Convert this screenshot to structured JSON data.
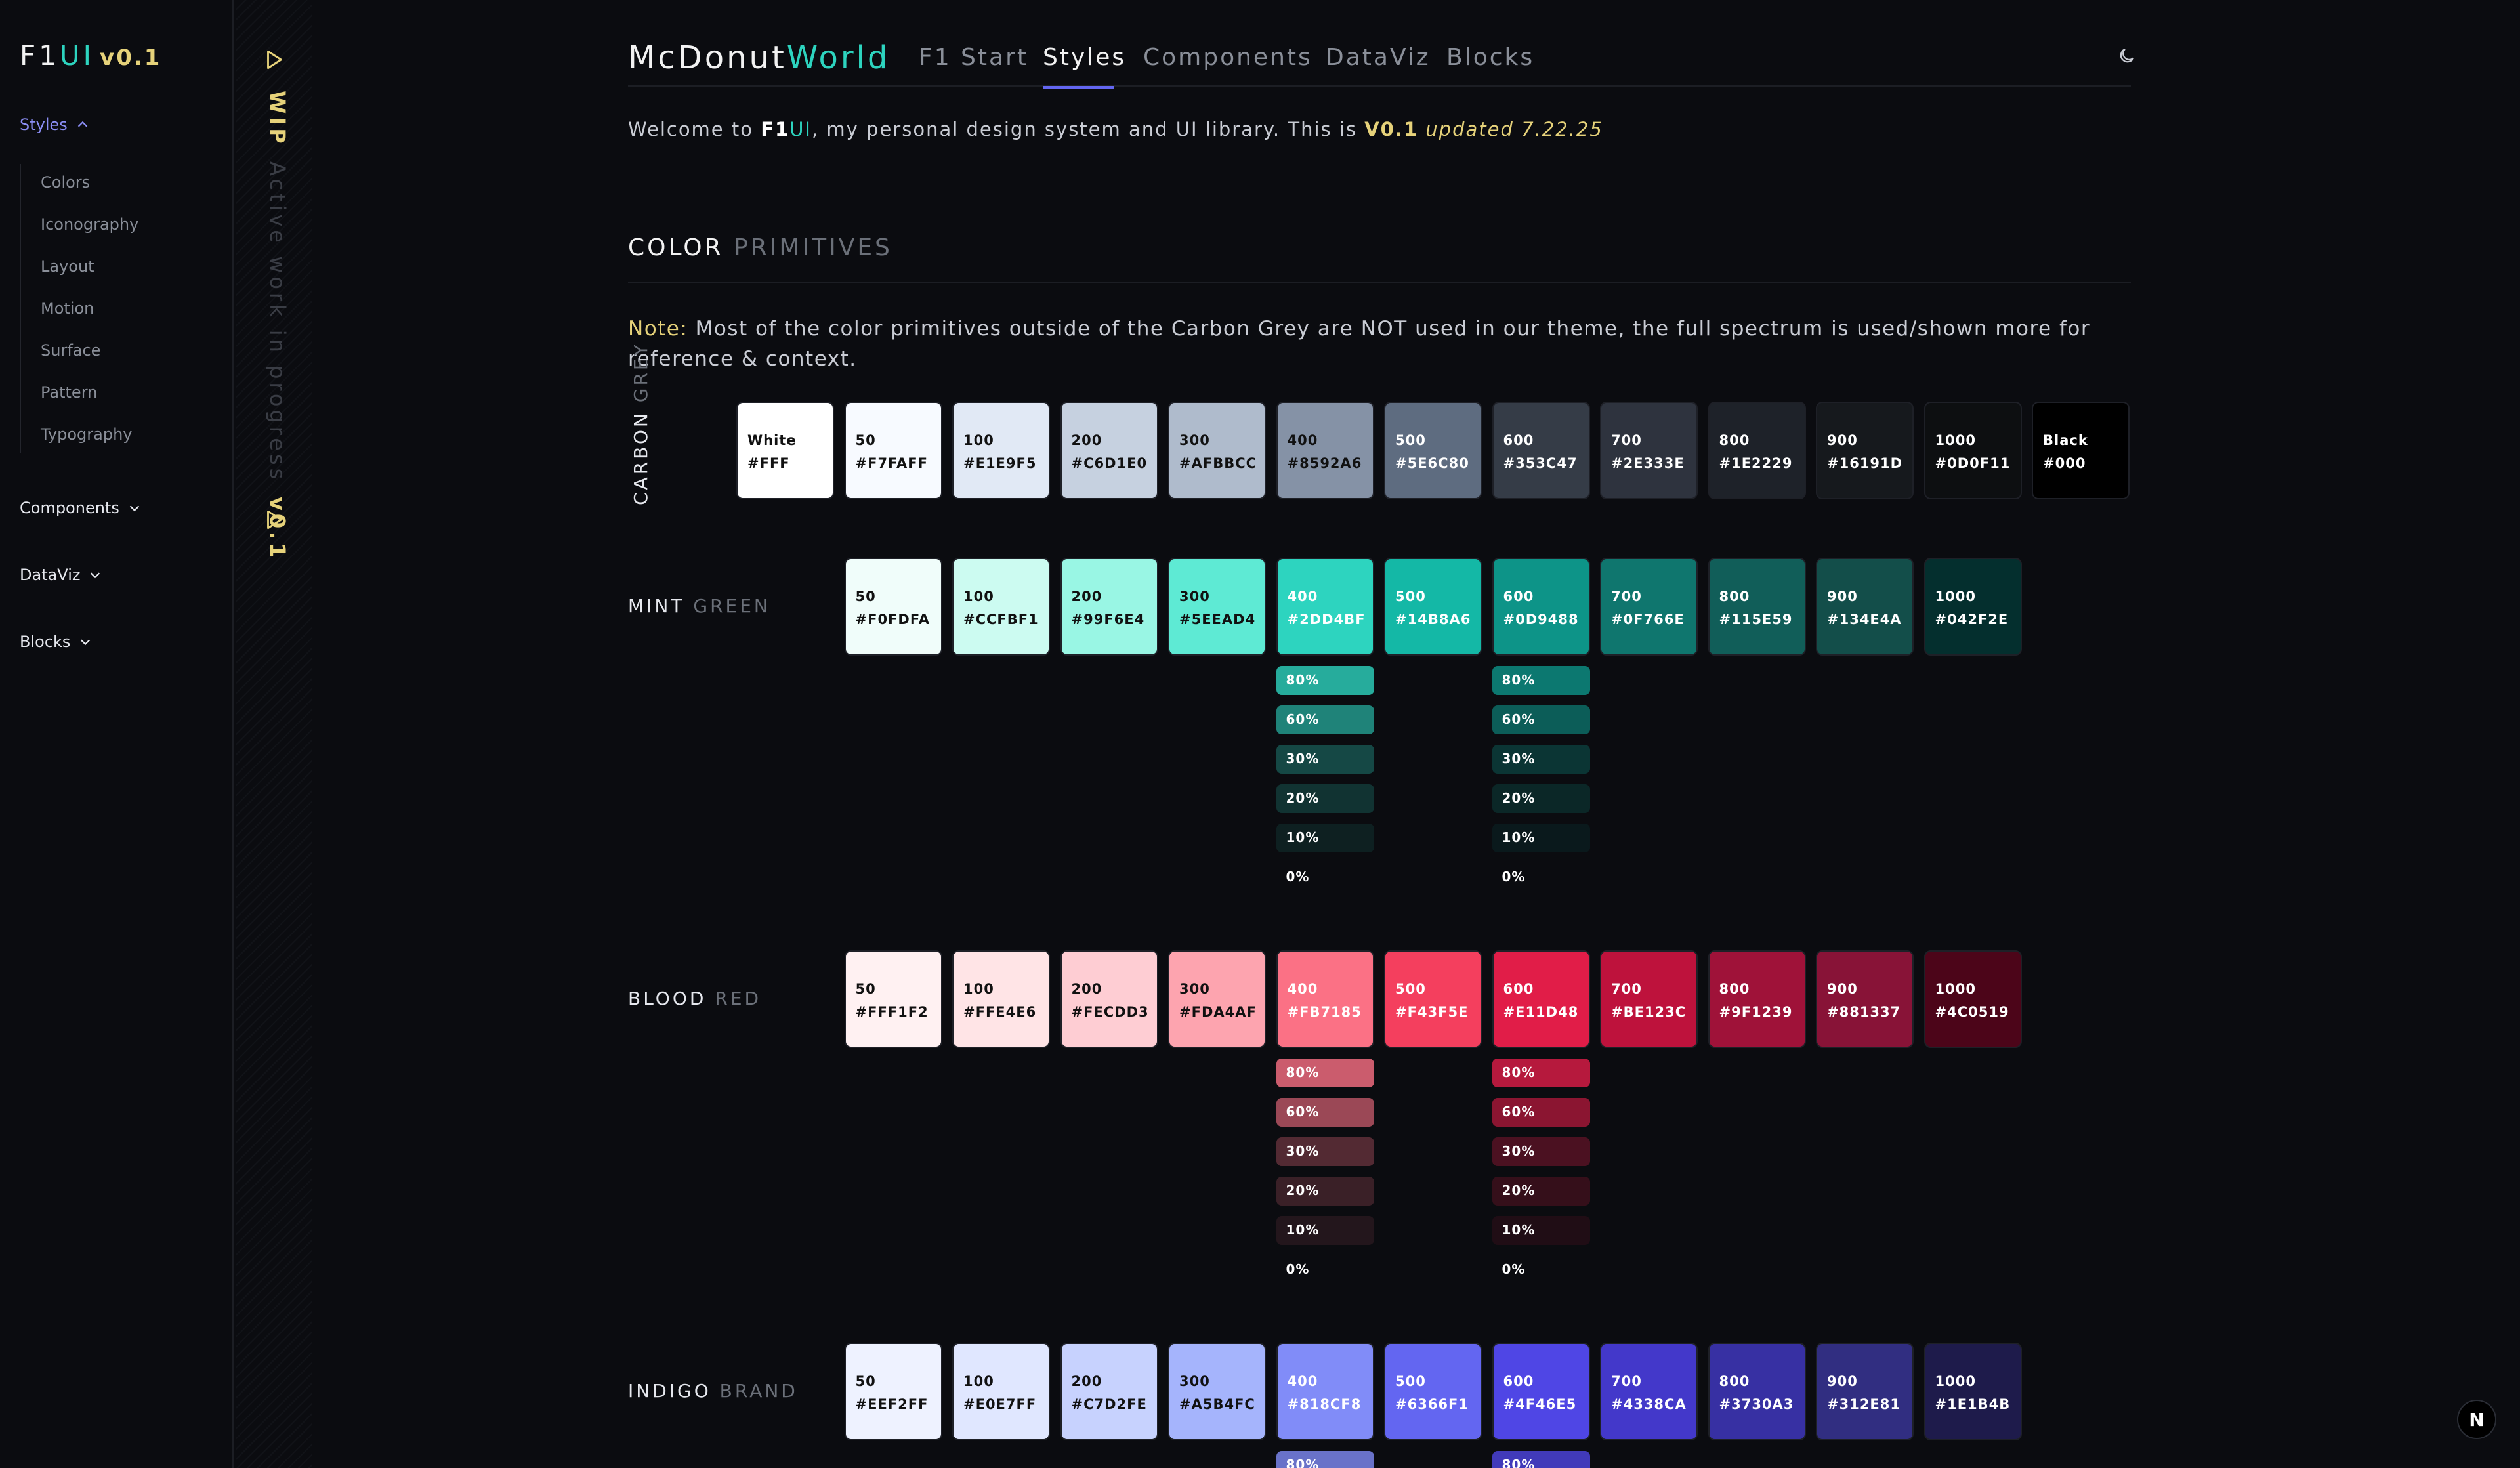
{
  "sidebar": {
    "logo": {
      "f1": "F1",
      "ui": "UI",
      "version": "v0.1"
    },
    "sections": [
      {
        "label": "Styles",
        "expanded": true,
        "icon": "chevron-up-icon"
      },
      {
        "label": "Components",
        "expanded": false,
        "icon": "chevron-down-icon"
      },
      {
        "label": "DataViz",
        "expanded": false,
        "icon": "chevron-down-icon"
      },
      {
        "label": "Blocks",
        "expanded": false,
        "icon": "chevron-down-icon"
      }
    ],
    "styles_items": [
      "Colors",
      "Iconography",
      "Layout",
      "Motion",
      "Surface",
      "Pattern",
      "Typography"
    ]
  },
  "wip": {
    "title": "WIP",
    "text": "Active work in progress",
    "version": "v0.1",
    "icon": "play-icon"
  },
  "header": {
    "brand_a": "McDonut",
    "brand_b": "World",
    "tabs": [
      "F1 Start",
      "Styles",
      "Components",
      "DataViz",
      "Blocks"
    ],
    "active_tab": "Styles",
    "theme_icon": "moon-icon"
  },
  "intro": {
    "prefix": "Welcome to ",
    "f1": "F1",
    "ui": "UI",
    "mid": ", my personal design system and UI library. This is ",
    "version": "V0.1",
    "updated": "updated 7.22.25"
  },
  "section": {
    "title_a": "COLOR",
    "title_b": "PRIMITIVES"
  },
  "note": {
    "label": "Note:",
    "text": " Most of the color primitives outside of the Carbon Grey are NOT used in our theme, the full spectrum is used/shown more for reference & context."
  },
  "palettes": {
    "carbon": {
      "label_a": "CARBON",
      "label_b": "GREY",
      "swatches": [
        {
          "name": "White",
          "hex": "#FFF",
          "bg": "#FFFFFF",
          "fg": "#111111"
        },
        {
          "name": "50",
          "hex": "#F7FAFF",
          "bg": "#F7FAFF",
          "fg": "#111111"
        },
        {
          "name": "100",
          "hex": "#E1E9F5",
          "bg": "#E1E9F5",
          "fg": "#111111"
        },
        {
          "name": "200",
          "hex": "#C6D1E0",
          "bg": "#C6D1E0",
          "fg": "#111111"
        },
        {
          "name": "300",
          "hex": "#AFBBCC",
          "bg": "#AFBBCC",
          "fg": "#111111"
        },
        {
          "name": "400",
          "hex": "#8592A6",
          "bg": "#8592A6",
          "fg": "#111111"
        },
        {
          "name": "500",
          "hex": "#5E6C80",
          "bg": "#5E6C80",
          "fg": "#FFFFFF"
        },
        {
          "name": "600",
          "hex": "#353C47",
          "bg": "#353C47",
          "fg": "#FFFFFF"
        },
        {
          "name": "700",
          "hex": "#2E333E",
          "bg": "#2E333E",
          "fg": "#FFFFFF"
        },
        {
          "name": "800",
          "hex": "#1E2229",
          "bg": "#1E2229",
          "fg": "#FFFFFF"
        },
        {
          "name": "900",
          "hex": "#16191D",
          "bg": "#16191D",
          "fg": "#FFFFFF"
        },
        {
          "name": "1000",
          "hex": "#0D0F11",
          "bg": "#0D0F11",
          "fg": "#FFFFFF"
        },
        {
          "name": "Black",
          "hex": "#000",
          "bg": "#000000",
          "fg": "#FFFFFF"
        }
      ]
    },
    "mint": {
      "label_a": "MINT",
      "label_b": "GREEN",
      "swatches": [
        {
          "name": "50",
          "hex": "#F0FDFA",
          "bg": "#F0FDFA",
          "fg": "#111111"
        },
        {
          "name": "100",
          "hex": "#CCFBF1",
          "bg": "#CCFBF1",
          "fg": "#111111"
        },
        {
          "name": "200",
          "hex": "#99F6E4",
          "bg": "#99F6E4",
          "fg": "#111111"
        },
        {
          "name": "300",
          "hex": "#5EEAD4",
          "bg": "#5EEAD4",
          "fg": "#111111"
        },
        {
          "name": "400",
          "hex": "#2DD4BF",
          "bg": "#2DD4BF",
          "fg": "#FFFFFF"
        },
        {
          "name": "500",
          "hex": "#14B8A6",
          "bg": "#14B8A6",
          "fg": "#FFFFFF"
        },
        {
          "name": "600",
          "hex": "#0D9488",
          "bg": "#0D9488",
          "fg": "#FFFFFF"
        },
        {
          "name": "700",
          "hex": "#0F766E",
          "bg": "#0F766E",
          "fg": "#FFFFFF"
        },
        {
          "name": "800",
          "hex": "#115E59",
          "bg": "#115E59",
          "fg": "#FFFFFF"
        },
        {
          "name": "900",
          "hex": "#134E4A",
          "bg": "#134E4A",
          "fg": "#FFFFFF"
        },
        {
          "name": "1000",
          "hex": "#042F2E",
          "bg": "#042F2E",
          "fg": "#FFFFFF"
        }
      ],
      "opacity_a": {
        "base": "#2DD4BF",
        "labels": [
          "80%",
          "60%",
          "30%",
          "20%",
          "10%",
          "0%"
        ],
        "alphas": [
          0.8,
          0.6,
          0.3,
          0.2,
          0.1,
          0
        ]
      },
      "opacity_b": {
        "base": "#0D9488",
        "labels": [
          "80%",
          "60%",
          "30%",
          "20%",
          "10%",
          "0%"
        ],
        "alphas": [
          0.8,
          0.6,
          0.3,
          0.2,
          0.1,
          0
        ]
      }
    },
    "blood": {
      "label_a": "BLOOD",
      "label_b": "RED",
      "swatches": [
        {
          "name": "50",
          "hex": "#FFF1F2",
          "bg": "#FFF1F2",
          "fg": "#111111"
        },
        {
          "name": "100",
          "hex": "#FFE4E6",
          "bg": "#FFE4E6",
          "fg": "#111111"
        },
        {
          "name": "200",
          "hex": "#FECDD3",
          "bg": "#FECDD3",
          "fg": "#111111"
        },
        {
          "name": "300",
          "hex": "#FDA4AF",
          "bg": "#FDA4AF",
          "fg": "#111111"
        },
        {
          "name": "400",
          "hex": "#FB7185",
          "bg": "#FB7185",
          "fg": "#FFFFFF"
        },
        {
          "name": "500",
          "hex": "#F43F5E",
          "bg": "#F43F5E",
          "fg": "#FFFFFF"
        },
        {
          "name": "600",
          "hex": "#E11D48",
          "bg": "#E11D48",
          "fg": "#FFFFFF"
        },
        {
          "name": "700",
          "hex": "#BE123C",
          "bg": "#BE123C",
          "fg": "#FFFFFF"
        },
        {
          "name": "800",
          "hex": "#9F1239",
          "bg": "#9F1239",
          "fg": "#FFFFFF"
        },
        {
          "name": "900",
          "hex": "#881337",
          "bg": "#881337",
          "fg": "#FFFFFF"
        },
        {
          "name": "1000",
          "hex": "#4C0519",
          "bg": "#4C0519",
          "fg": "#FFFFFF"
        }
      ],
      "opacity_a": {
        "base": "#FB7185",
        "labels": [
          "80%",
          "60%",
          "30%",
          "20%",
          "10%",
          "0%"
        ],
        "alphas": [
          0.8,
          0.6,
          0.3,
          0.2,
          0.1,
          0
        ]
      },
      "opacity_b": {
        "base": "#E11D48",
        "labels": [
          "80%",
          "60%",
          "30%",
          "20%",
          "10%",
          "0%"
        ],
        "alphas": [
          0.8,
          0.6,
          0.3,
          0.2,
          0.1,
          0
        ]
      }
    },
    "indigo": {
      "label_a": "INDIGO",
      "label_b": "BRAND",
      "swatches": [
        {
          "name": "50",
          "hex": "#EEF2FF",
          "bg": "#EEF2FF",
          "fg": "#111111"
        },
        {
          "name": "100",
          "hex": "#E0E7FF",
          "bg": "#E0E7FF",
          "fg": "#111111"
        },
        {
          "name": "200",
          "hex": "#C7D2FE",
          "bg": "#C7D2FE",
          "fg": "#111111"
        },
        {
          "name": "300",
          "hex": "#A5B4FC",
          "bg": "#A5B4FC",
          "fg": "#111111"
        },
        {
          "name": "400",
          "hex": "#818CF8",
          "bg": "#818CF8",
          "fg": "#FFFFFF"
        },
        {
          "name": "500",
          "hex": "#6366F1",
          "bg": "#6366F1",
          "fg": "#FFFFFF"
        },
        {
          "name": "600",
          "hex": "#4F46E5",
          "bg": "#4F46E5",
          "fg": "#FFFFFF"
        },
        {
          "name": "700",
          "hex": "#4338CA",
          "bg": "#4338CA",
          "fg": "#FFFFFF"
        },
        {
          "name": "800",
          "hex": "#3730A3",
          "bg": "#3730A3",
          "fg": "#FFFFFF"
        },
        {
          "name": "900",
          "hex": "#312E81",
          "bg": "#312E81",
          "fg": "#FFFFFF"
        },
        {
          "name": "1000",
          "hex": "#1E1B4B",
          "bg": "#1E1B4B",
          "fg": "#FFFFFF"
        }
      ],
      "opacity_a": {
        "base": "#818CF8",
        "labels": [
          "80%"
        ],
        "alphas": [
          0.8
        ]
      },
      "opacity_b": {
        "base": "#4F46E5",
        "labels": [
          "80%"
        ],
        "alphas": [
          0.8
        ]
      }
    }
  },
  "fab": {
    "label": "N"
  }
}
